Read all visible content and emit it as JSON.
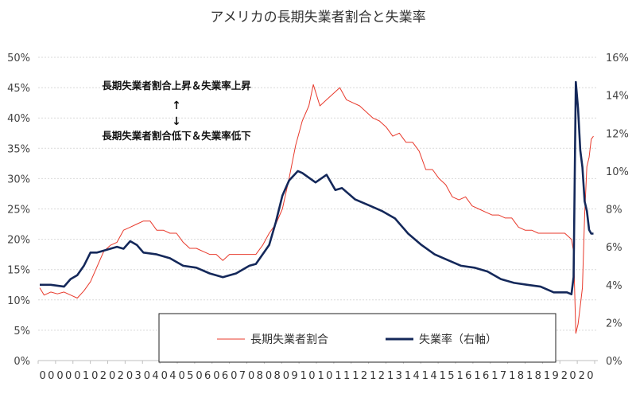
{
  "chart_data": {
    "type": "line",
    "title": "アメリカの長期失業者割合と失業率",
    "annotation_up": "長期失業者割合上昇＆失業率上昇",
    "annotation_down": "長期失業者割合低下＆失業率低下",
    "arrow_up": "↑",
    "arrow_down": "↓",
    "legend_position": "bottom",
    "grid": true,
    "x_tick_labels": [
      "00",
      "00",
      "01",
      "02",
      "02",
      "03",
      "04",
      "04",
      "05",
      "06",
      "06",
      "07",
      "08",
      "08",
      "09",
      "10",
      "10",
      "11",
      "12",
      "12",
      "13",
      "14",
      "14",
      "15",
      "16",
      "16",
      "17",
      "18",
      "18",
      "19",
      "20",
      "20"
    ],
    "y_left": {
      "min": 0,
      "max": 50,
      "ticks": [
        "0%",
        "5%",
        "10%",
        "15%",
        "20%",
        "25%",
        "30%",
        "35%",
        "40%",
        "45%",
        "50%"
      ]
    },
    "y_right": {
      "min": 0,
      "max": 16,
      "ticks": [
        "0%",
        "2%",
        "4%",
        "6%",
        "8%",
        "10%",
        "12%",
        "14%",
        "16%"
      ]
    },
    "series": [
      {
        "name": "長期失業者割合",
        "axis": "left",
        "color": "#e8392b",
        "width": 1,
        "points": [
          [
            "2000-01",
            12
          ],
          [
            "2000-03",
            10.8
          ],
          [
            "2000-06",
            11.3
          ],
          [
            "2000-09",
            11.0
          ],
          [
            "2000-12",
            11.3
          ],
          [
            "2001-03",
            10.8
          ],
          [
            "2001-06",
            10.3
          ],
          [
            "2001-09",
            11.5
          ],
          [
            "2001-12",
            13.0
          ],
          [
            "2002-03",
            15.5
          ],
          [
            "2002-06",
            18.0
          ],
          [
            "2002-09",
            19.0
          ],
          [
            "2002-12",
            19.5
          ],
          [
            "2003-03",
            21.5
          ],
          [
            "2003-06",
            22
          ],
          [
            "2003-09",
            22.5
          ],
          [
            "2003-12",
            23
          ],
          [
            "2004-03",
            23
          ],
          [
            "2004-06",
            21.5
          ],
          [
            "2004-09",
            21.5
          ],
          [
            "2004-12",
            21
          ],
          [
            "2005-03",
            21
          ],
          [
            "2005-06",
            19.5
          ],
          [
            "2005-09",
            18.5
          ],
          [
            "2005-12",
            18.5
          ],
          [
            "2006-03",
            18
          ],
          [
            "2006-06",
            17.5
          ],
          [
            "2006-09",
            17.5
          ],
          [
            "2006-12",
            16.5
          ],
          [
            "2007-03",
            17.5
          ],
          [
            "2007-06",
            17.5
          ],
          [
            "2007-09",
            17.5
          ],
          [
            "2007-12",
            17.5
          ],
          [
            "2008-03",
            17.5
          ],
          [
            "2008-06",
            19
          ],
          [
            "2008-09",
            21
          ],
          [
            "2008-12",
            22.5
          ],
          [
            "2009-03",
            25
          ],
          [
            "2009-06",
            30
          ],
          [
            "2009-09",
            35.5
          ],
          [
            "2009-12",
            39.5
          ],
          [
            "2010-03",
            42
          ],
          [
            "2010-05",
            45.5
          ],
          [
            "2010-08",
            42
          ],
          [
            "2010-11",
            43
          ],
          [
            "2011-02",
            44
          ],
          [
            "2011-05",
            45
          ],
          [
            "2011-08",
            43
          ],
          [
            "2011-11",
            42.5
          ],
          [
            "2012-02",
            42
          ],
          [
            "2012-05",
            41
          ],
          [
            "2012-08",
            40
          ],
          [
            "2012-11",
            39.5
          ],
          [
            "2013-02",
            38.5
          ],
          [
            "2013-05",
            37
          ],
          [
            "2013-08",
            37.5
          ],
          [
            "2013-11",
            36
          ],
          [
            "2014-02",
            36
          ],
          [
            "2014-05",
            34.5
          ],
          [
            "2014-08",
            31.5
          ],
          [
            "2014-11",
            31.5
          ],
          [
            "2015-02",
            30
          ],
          [
            "2015-05",
            29
          ],
          [
            "2015-08",
            27
          ],
          [
            "2015-11",
            26.5
          ],
          [
            "2016-02",
            27
          ],
          [
            "2016-05",
            25.5
          ],
          [
            "2016-08",
            25
          ],
          [
            "2016-11",
            24.5
          ],
          [
            "2017-02",
            24
          ],
          [
            "2017-05",
            24
          ],
          [
            "2017-08",
            23.5
          ],
          [
            "2017-11",
            23.5
          ],
          [
            "2018-02",
            22
          ],
          [
            "2018-05",
            21.5
          ],
          [
            "2018-08",
            21.5
          ],
          [
            "2018-11",
            21
          ],
          [
            "2019-02",
            21
          ],
          [
            "2019-05",
            21
          ],
          [
            "2019-08",
            21
          ],
          [
            "2019-11",
            21
          ],
          [
            "2020-02",
            20
          ],
          [
            "2020-03",
            18
          ],
          [
            "2020-04",
            4.5
          ],
          [
            "2020-05",
            6
          ],
          [
            "2020-06",
            9
          ],
          [
            "2020-07",
            12
          ],
          [
            "2020-08",
            24
          ],
          [
            "2020-09",
            32
          ],
          [
            "2020-10",
            33.5
          ],
          [
            "2020-11",
            36.5
          ],
          [
            "2020-12",
            37
          ]
        ]
      },
      {
        "name": "失業率（右軸）",
        "axis": "right",
        "color": "#14285a",
        "width": 2.6,
        "points": [
          [
            "2000-01",
            4.0
          ],
          [
            "2000-06",
            4.0
          ],
          [
            "2000-12",
            3.9
          ],
          [
            "2001-03",
            4.3
          ],
          [
            "2001-06",
            4.5
          ],
          [
            "2001-09",
            5.0
          ],
          [
            "2001-12",
            5.7
          ],
          [
            "2002-03",
            5.7
          ],
          [
            "2002-06",
            5.8
          ],
          [
            "2002-12",
            6.0
          ],
          [
            "2003-03",
            5.9
          ],
          [
            "2003-06",
            6.3
          ],
          [
            "2003-09",
            6.1
          ],
          [
            "2003-12",
            5.7
          ],
          [
            "2004-06",
            5.6
          ],
          [
            "2004-12",
            5.4
          ],
          [
            "2005-06",
            5.0
          ],
          [
            "2005-12",
            4.9
          ],
          [
            "2006-06",
            4.6
          ],
          [
            "2006-12",
            4.4
          ],
          [
            "2007-06",
            4.6
          ],
          [
            "2007-12",
            5.0
          ],
          [
            "2008-03",
            5.1
          ],
          [
            "2008-06",
            5.6
          ],
          [
            "2008-09",
            6.1
          ],
          [
            "2008-12",
            7.3
          ],
          [
            "2009-03",
            8.7
          ],
          [
            "2009-06",
            9.5
          ],
          [
            "2009-10",
            10.0
          ],
          [
            "2009-12",
            9.9
          ],
          [
            "2010-06",
            9.4
          ],
          [
            "2010-11",
            9.8
          ],
          [
            "2011-03",
            9.0
          ],
          [
            "2011-06",
            9.1
          ],
          [
            "2011-12",
            8.5
          ],
          [
            "2012-06",
            8.2
          ],
          [
            "2012-12",
            7.9
          ],
          [
            "2013-06",
            7.5
          ],
          [
            "2013-12",
            6.7
          ],
          [
            "2014-06",
            6.1
          ],
          [
            "2014-12",
            5.6
          ],
          [
            "2015-06",
            5.3
          ],
          [
            "2015-12",
            5.0
          ],
          [
            "2016-06",
            4.9
          ],
          [
            "2016-12",
            4.7
          ],
          [
            "2017-06",
            4.3
          ],
          [
            "2017-12",
            4.1
          ],
          [
            "2018-06",
            4.0
          ],
          [
            "2018-12",
            3.9
          ],
          [
            "2019-06",
            3.6
          ],
          [
            "2019-12",
            3.6
          ],
          [
            "2020-02",
            3.5
          ],
          [
            "2020-03",
            4.4
          ],
          [
            "2020-04",
            14.7
          ],
          [
            "2020-05",
            13.3
          ],
          [
            "2020-06",
            11.1
          ],
          [
            "2020-07",
            10.2
          ],
          [
            "2020-08",
            8.4
          ],
          [
            "2020-09",
            7.9
          ],
          [
            "2020-10",
            6.9
          ],
          [
            "2020-11",
            6.7
          ],
          [
            "2020-12",
            6.7
          ]
        ]
      }
    ]
  }
}
